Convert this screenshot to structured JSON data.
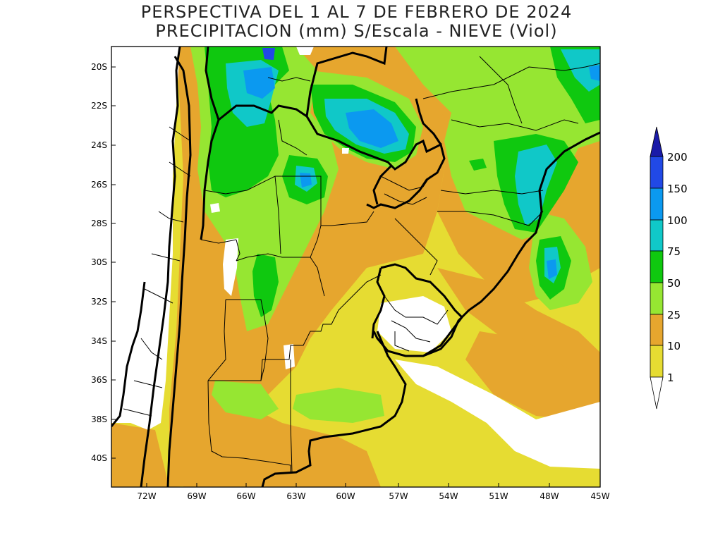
{
  "title_line1": "PERSPECTIVA DEL 1 AL 7 DE FEBRERO DE 2024",
  "title_line2": "PRECIPITACION (mm) S/Escala - NIEVE (Viol)",
  "map": {
    "lat_labels": [
      "20S",
      "22S",
      "24S",
      "26S",
      "28S",
      "30S",
      "32S",
      "34S",
      "36S",
      "38S",
      "40S"
    ],
    "lon_labels": [
      "72W",
      "69W",
      "66W",
      "63W",
      "60W",
      "57W",
      "54W",
      "51W",
      "48W",
      "45W"
    ]
  },
  "legend": {
    "levels": [
      "200",
      "150",
      "100",
      "75",
      "50",
      "25",
      "10",
      "1"
    ],
    "colors": {
      "over200": "#1a1aa8",
      "150-200": "#2149e6",
      "100-150": "#0b99f0",
      "75-100": "#10c8c8",
      "50-75": "#0fc80f",
      "25-50": "#96e632",
      "10-25": "#e6a62e",
      "1-10": "#e6dc32",
      "lt1": "#ffffff"
    }
  }
}
